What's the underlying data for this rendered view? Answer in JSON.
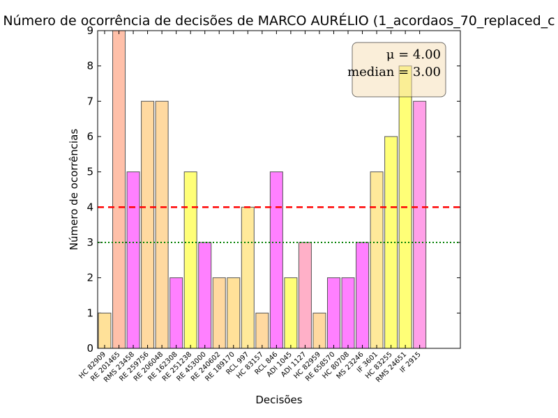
{
  "chart_data": {
    "type": "bar",
    "title": "Número de ocorrência de decisões de MARCO AURÉLIO (1_acordaos_70_replaced_c",
    "xlabel": "Decisões",
    "ylabel": "Número de ocorrências",
    "ylim": [
      0,
      9
    ],
    "yticks": [
      "0",
      "1",
      "2",
      "3",
      "4",
      "5",
      "6",
      "7",
      "8",
      "9"
    ],
    "categories": [
      "HC 82909",
      "RE 201465",
      "RMS 23458",
      "RE 259756",
      "RE 206048",
      "RE 162308",
      "RE 251238",
      "RE 453000",
      "RE 240602",
      "RE 189170",
      "RCL 997",
      "HC 83157",
      "RCL 846",
      "ADI 1045",
      "ADI 1127",
      "HC 82959",
      "RE 658570",
      "HC 80708",
      "MS 23246",
      "IF 3601",
      "HC 83255",
      "RMS 24651",
      "IF 2915"
    ],
    "values": [
      1,
      9,
      5,
      7,
      7,
      2,
      5,
      3,
      2,
      2,
      4,
      1,
      5,
      2,
      3,
      1,
      2,
      2,
      3,
      5,
      6,
      8,
      7
    ],
    "bar_colors": [
      "#ffe199",
      "#ffc0a9",
      "#ff80ff",
      "#ffd9a0",
      "#ffd9a0",
      "#ff80ff",
      "#ffff77",
      "#ff80ff",
      "#ffd9a0",
      "#ffe199",
      "#ffe99a",
      "#ffd9a0",
      "#ff80ff",
      "#ffff77",
      "#ffb0c8",
      "#ffd9a0",
      "#ff80ff",
      "#ff80ff",
      "#ff80ff",
      "#ffe99a",
      "#ffff77",
      "#ffff77",
      "#ffa0e8"
    ],
    "mean": 4,
    "median": 3,
    "mean_line_color": "#ff0000",
    "median_line_color": "#008000",
    "grid": false,
    "stats_box": {
      "mean_text": "μ = 4.00",
      "median_text": "median = 3.00",
      "placement": "top-right",
      "background": "#f5deb3"
    }
  }
}
